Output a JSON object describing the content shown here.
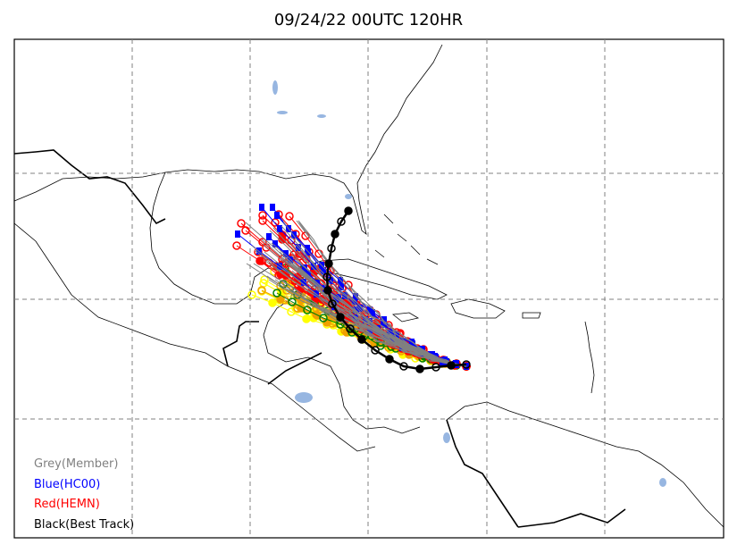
{
  "title": "09/24/22 00UTC 120HR",
  "legend": [
    {
      "label": "Grey(Member)",
      "color": "#808080"
    },
    {
      "label": "Blue(HC00)",
      "color": "#0000ff"
    },
    {
      "label": "Red(HEMN)",
      "color": "#ff0000"
    },
    {
      "label": "Black(Best Track)",
      "color": "#000000"
    }
  ],
  "colors": {
    "member": "#808080",
    "hc00": "#0000ff",
    "hemn": "#ff0000",
    "best_track": "#000000",
    "yellow_members": "#ffff00",
    "orange_members": "#f0a000",
    "green_members": "#008000",
    "water": "#97b6e1",
    "grid": "#808080"
  },
  "map": {
    "type": "storm track ensemble",
    "gridlines": "dashed"
  }
}
